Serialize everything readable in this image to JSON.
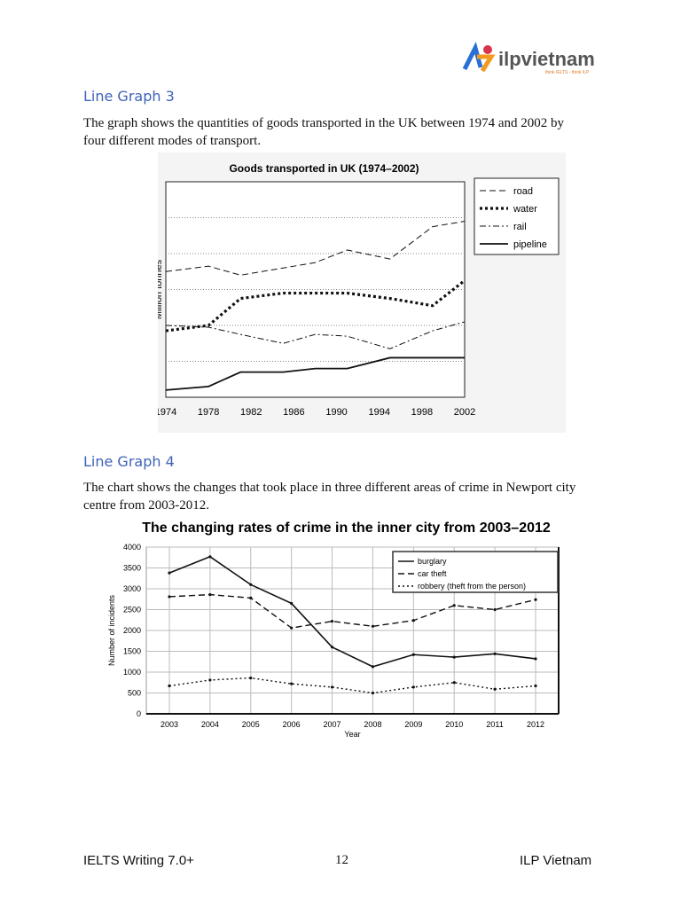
{
  "logo": {
    "text": "ilpvietnam",
    "tagline": "think IELTS - think ILP"
  },
  "section1": {
    "heading": "Line Graph 3",
    "description": "The graph shows the quantities of goods transported in the UK between 1974 and 2002 by four different modes of transport."
  },
  "section2": {
    "heading": "Line Graph 4",
    "description": "The chart shows the changes that took place in three different areas of crime in Newport city centre from 2003-2012."
  },
  "footer": {
    "left": "IELTS Writing 7.0+",
    "page": "12",
    "right": "ILP Vietnam"
  },
  "chart_data": [
    {
      "type": "line",
      "title": "Goods transported in UK (1974–2002)",
      "ylabel": "Million tonnes",
      "xlabel": "",
      "ylim": [
        0,
        120
      ],
      "xlim": [
        1974,
        2002
      ],
      "yticks": [
        0,
        20,
        40,
        60,
        80,
        100,
        120
      ],
      "xticks": [
        1974,
        1978,
        1982,
        1986,
        1990,
        1994,
        1998,
        2002
      ],
      "grid": "horizontal dotted",
      "legend": "right",
      "x": [
        1974,
        1978,
        1981,
        1985,
        1988,
        1991,
        1995,
        1999,
        2002
      ],
      "series": [
        {
          "name": "road",
          "style": "dashed",
          "values": [
            70,
            73,
            68,
            72,
            75,
            82,
            77,
            95,
            98
          ]
        },
        {
          "name": "water",
          "style": "dotted-thick",
          "values": [
            37,
            40,
            55,
            58,
            58,
            58,
            55,
            51,
            65
          ]
        },
        {
          "name": "rail",
          "style": "dash-dot",
          "values": [
            40,
            39,
            35,
            30,
            35,
            34,
            27,
            37,
            42
          ]
        },
        {
          "name": "pipeline",
          "style": "solid",
          "values": [
            4,
            6,
            14,
            14,
            16,
            16,
            22,
            22,
            22
          ]
        }
      ]
    },
    {
      "type": "line",
      "title": "The changing rates of crime in the inner city from 2003–2012",
      "xlabel": "Year",
      "ylabel": "Number of incidents",
      "ylim": [
        0,
        4000
      ],
      "yticks": [
        0,
        500,
        1000,
        1500,
        2000,
        2500,
        3000,
        3500,
        4000
      ],
      "grid": "both",
      "legend": "top-right",
      "categories": [
        "2003",
        "2004",
        "2005",
        "2006",
        "2007",
        "2008",
        "2009",
        "2010",
        "2011",
        "2012"
      ],
      "series": [
        {
          "name": "burglary",
          "style": "solid",
          "values": [
            3380,
            3770,
            3100,
            2650,
            1600,
            1130,
            1420,
            1360,
            1440,
            1320
          ]
        },
        {
          "name": "car theft",
          "style": "dashed",
          "values": [
            2810,
            2860,
            2780,
            2060,
            2220,
            2100,
            2240,
            2600,
            2500,
            2740
          ]
        },
        {
          "name": "robbery (theft from the person)",
          "style": "dotted",
          "values": [
            670,
            810,
            860,
            720,
            640,
            500,
            640,
            750,
            590,
            670
          ]
        }
      ]
    }
  ]
}
